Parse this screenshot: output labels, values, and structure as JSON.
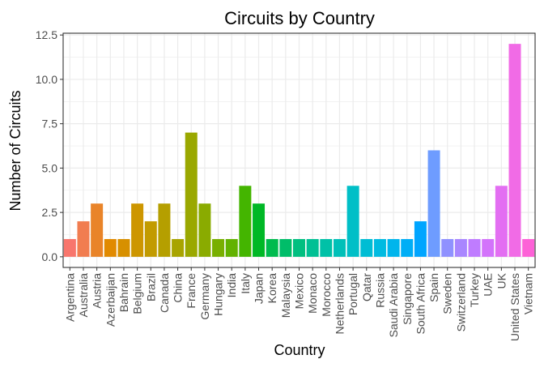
{
  "chart_data": {
    "type": "bar",
    "title": "Circuits by Country",
    "xlabel": "Country",
    "ylabel": "Number of Circuits",
    "ylim": [
      -0.6,
      12.6
    ],
    "yticks": [
      0.0,
      2.5,
      5.0,
      7.5,
      10.0,
      12.5
    ],
    "ytick_labels": [
      "0.0",
      "2.5",
      "5.0",
      "7.5",
      "10.0",
      "12.5"
    ],
    "grid": true,
    "legend": "none",
    "categories": [
      "Argentina",
      "Australia",
      "Austria",
      "Azerbaijan",
      "Bahrain",
      "Belgium",
      "Brazil",
      "Canada",
      "China",
      "France",
      "Germany",
      "Hungary",
      "India",
      "Italy",
      "Japan",
      "Korea",
      "Malaysia",
      "Mexico",
      "Monaco",
      "Morocco",
      "Netherlands",
      "Portugal",
      "Qatar",
      "Russia",
      "Saudi Arabia",
      "Singapore",
      "South Africa",
      "Spain",
      "Sweden",
      "Switzerland",
      "Turkey",
      "UAE",
      "UK",
      "United States",
      "Vietnam"
    ],
    "values": [
      1,
      2,
      3,
      1,
      1,
      3,
      2,
      3,
      1,
      7,
      3,
      1,
      1,
      4,
      3,
      1,
      1,
      1,
      1,
      1,
      1,
      4,
      1,
      1,
      1,
      1,
      2,
      6,
      1,
      1,
      1,
      1,
      4,
      12,
      1
    ],
    "colors": [
      "#F8766D",
      "#F17D50",
      "#E98429",
      "#E18A00",
      "#D79000",
      "#CD9600",
      "#C29B00",
      "#B59F00",
      "#A8A400",
      "#9AA800",
      "#8AAB00",
      "#78AF00",
      "#62B200",
      "#44B500",
      "#00B826",
      "#00BB4E",
      "#00BD69",
      "#00BF80",
      "#00C094",
      "#00C1A7",
      "#00C0B8",
      "#00BFC7",
      "#00BDD4",
      "#00BBE1",
      "#00B5EC",
      "#00AEF6",
      "#00A5FF",
      "#6E9CFF",
      "#8F91FF",
      "#A986FF",
      "#BF7CFF",
      "#D373FB",
      "#E36EF2",
      "#F16BE6",
      "#FD62D7"
    ]
  }
}
